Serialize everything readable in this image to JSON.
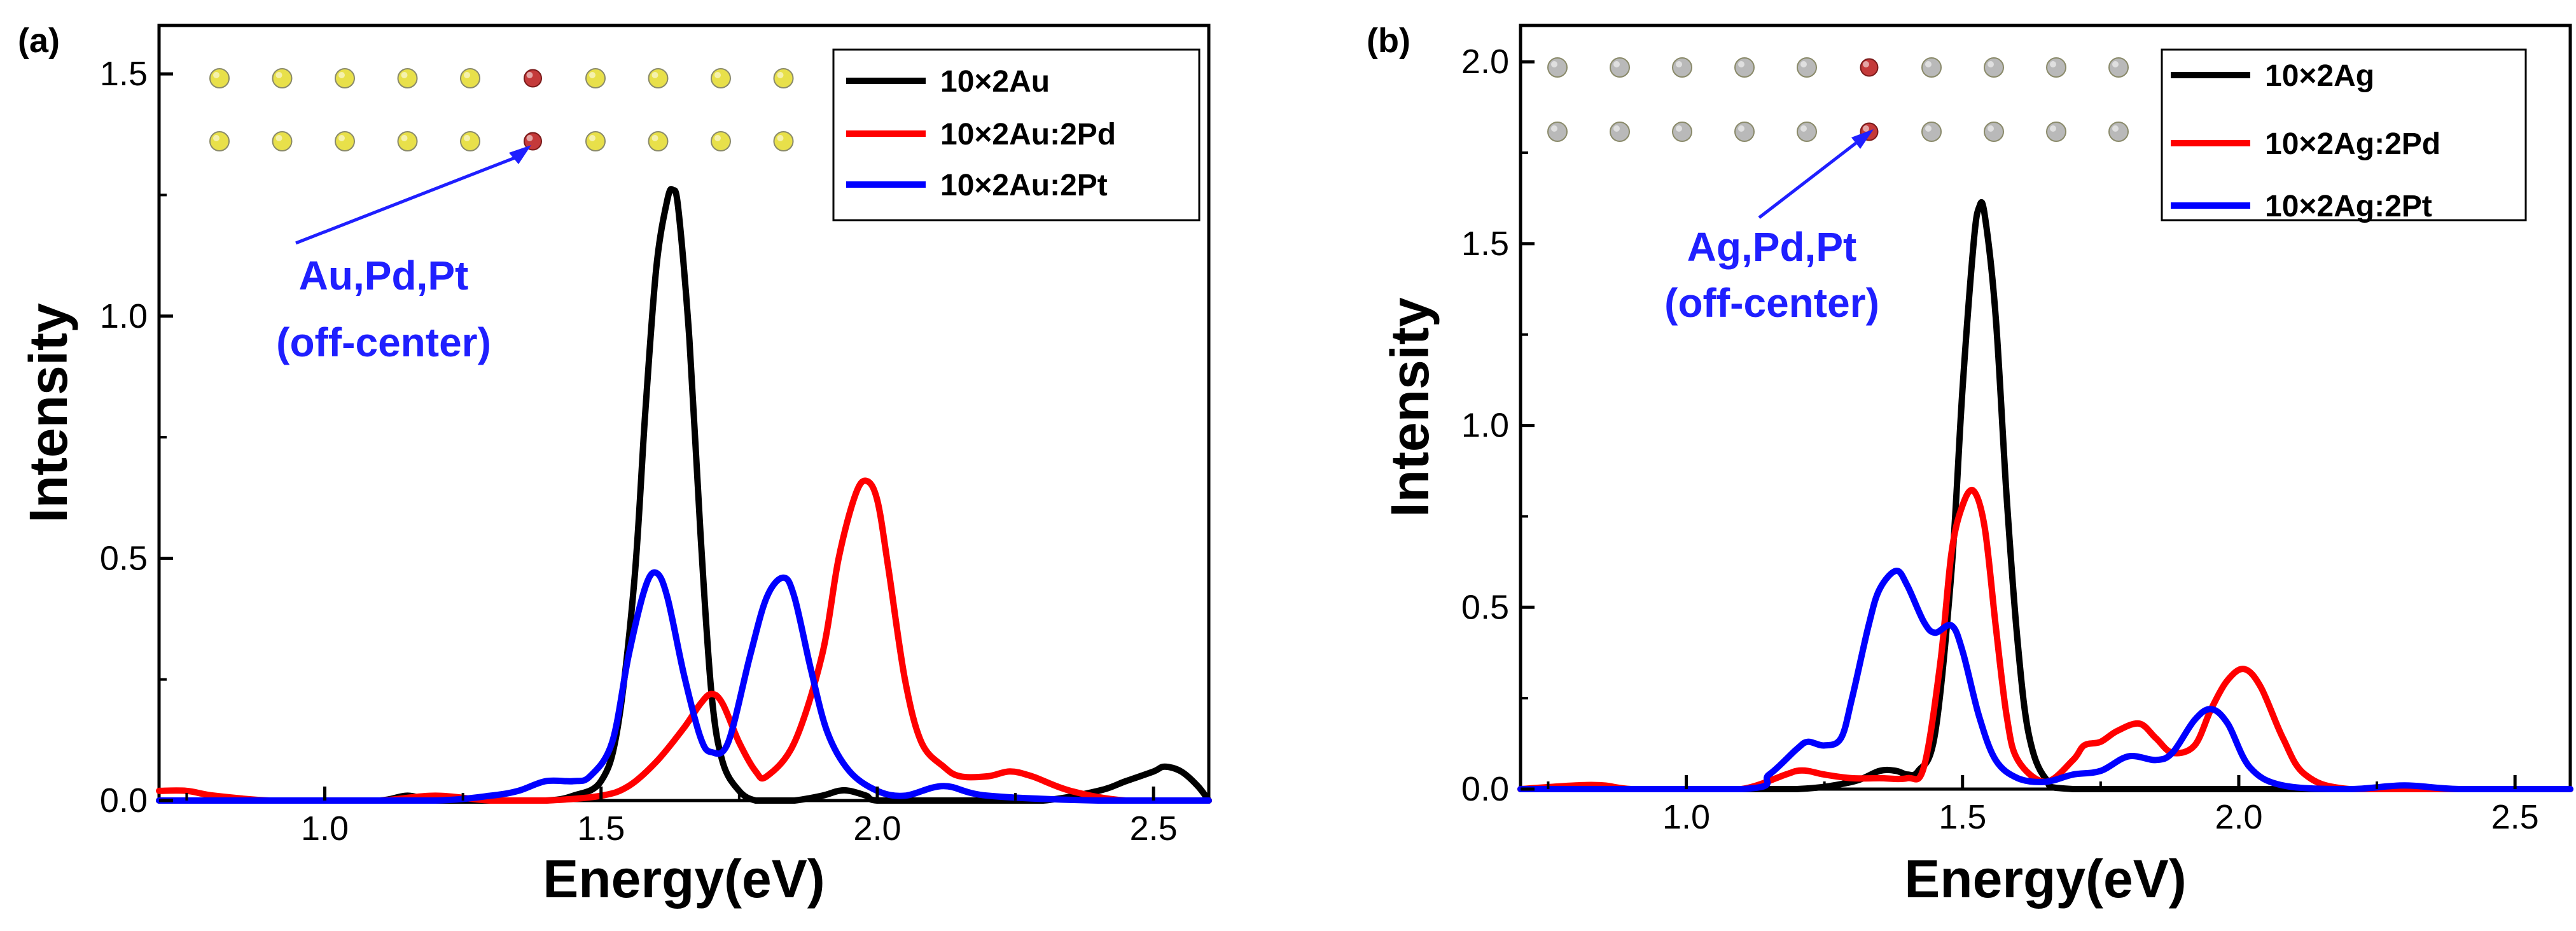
{
  "chart_data": [
    {
      "id": "a",
      "type": "line",
      "panel_label": "(a)",
      "xlabel": "Energy(eV)",
      "ylabel": "Intensity",
      "xlim": [
        0.7,
        2.6
      ],
      "ylim": [
        0,
        1.6
      ],
      "xticks": [
        1.0,
        1.5,
        2.0,
        2.5
      ],
      "xtick_labels": [
        "1.0",
        "1.5",
        "2.0",
        "2.5"
      ],
      "yticks": [
        0.0,
        0.5,
        1.0,
        1.5
      ],
      "ytick_labels": [
        "0.0",
        "0.5",
        "1.0",
        "1.5"
      ],
      "legend_position": "top-right",
      "annotation": {
        "line1": "Au,Pd,Pt",
        "line2": "(off-center)",
        "color": "#1f1fff"
      },
      "atom_inset": {
        "rows": 2,
        "columns": 10,
        "host_color": "#e8e04a",
        "dopant_color": "#c43a3a",
        "dopant_column": 6
      },
      "series": [
        {
          "name": "10×2Au",
          "color": "#000000",
          "x": [
            0.7,
            1.0,
            1.1,
            1.15,
            1.2,
            1.3,
            1.4,
            1.45,
            1.5,
            1.53,
            1.56,
            1.58,
            1.6,
            1.62,
            1.63,
            1.64,
            1.66,
            1.68,
            1.7,
            1.72,
            1.75,
            1.78,
            1.82,
            1.85,
            1.9,
            1.93,
            1.95,
            1.98,
            2.0,
            2.1,
            2.2,
            2.3,
            2.4,
            2.45,
            2.5,
            2.52,
            2.55,
            2.58,
            2.6
          ],
          "y": [
            0.0,
            0.0,
            0.0,
            0.01,
            0.0,
            0.0,
            0.0,
            0.01,
            0.04,
            0.15,
            0.45,
            0.8,
            1.1,
            1.24,
            1.26,
            1.22,
            0.95,
            0.55,
            0.22,
            0.08,
            0.02,
            0.0,
            0.0,
            0.0,
            0.01,
            0.02,
            0.02,
            0.01,
            0.0,
            0.0,
            0.0,
            0.0,
            0.02,
            0.04,
            0.06,
            0.07,
            0.06,
            0.03,
            0.0
          ]
        },
        {
          "name": "10×2Au:2Pd",
          "color": "#ff0000",
          "x": [
            0.7,
            0.75,
            0.8,
            0.9,
            1.0,
            1.1,
            1.2,
            1.3,
            1.4,
            1.5,
            1.55,
            1.6,
            1.65,
            1.68,
            1.7,
            1.72,
            1.75,
            1.78,
            1.8,
            1.85,
            1.9,
            1.93,
            1.96,
            1.98,
            2.0,
            2.02,
            2.05,
            2.08,
            2.12,
            2.15,
            2.2,
            2.24,
            2.28,
            2.35,
            2.45,
            2.6
          ],
          "y": [
            0.02,
            0.02,
            0.01,
            0.0,
            0.0,
            0.0,
            0.01,
            0.0,
            0.0,
            0.01,
            0.03,
            0.08,
            0.15,
            0.2,
            0.22,
            0.2,
            0.12,
            0.06,
            0.05,
            0.12,
            0.3,
            0.5,
            0.63,
            0.66,
            0.62,
            0.48,
            0.25,
            0.12,
            0.07,
            0.05,
            0.05,
            0.06,
            0.05,
            0.02,
            0.0,
            0.0
          ]
        },
        {
          "name": "10×2Au:2Pt",
          "color": "#0000ff",
          "x": [
            0.7,
            1.0,
            1.2,
            1.3,
            1.35,
            1.4,
            1.45,
            1.48,
            1.52,
            1.55,
            1.58,
            1.6,
            1.62,
            1.65,
            1.68,
            1.7,
            1.73,
            1.77,
            1.8,
            1.83,
            1.85,
            1.88,
            1.91,
            1.95,
            2.0,
            2.05,
            2.12,
            2.2,
            2.4,
            2.6
          ],
          "y": [
            0.0,
            0.0,
            0.0,
            0.01,
            0.02,
            0.04,
            0.04,
            0.05,
            0.12,
            0.3,
            0.44,
            0.47,
            0.42,
            0.26,
            0.13,
            0.1,
            0.12,
            0.3,
            0.42,
            0.46,
            0.42,
            0.27,
            0.14,
            0.06,
            0.02,
            0.01,
            0.03,
            0.01,
            0.0,
            0.0
          ]
        }
      ]
    },
    {
      "id": "b",
      "type": "line",
      "panel_label": "(b)",
      "xlabel": "Energy(eV)",
      "ylabel": "Intensity",
      "xlim": [
        0.7,
        2.6
      ],
      "ylim": [
        0,
        2.1
      ],
      "xticks": [
        1.0,
        1.5,
        2.0,
        2.5
      ],
      "xtick_labels": [
        "1.0",
        "1.5",
        "2.0",
        "2.5"
      ],
      "yticks": [
        0.0,
        0.5,
        1.0,
        1.5,
        2.0
      ],
      "ytick_labels": [
        "0.0",
        "0.5",
        "1.0",
        "1.5",
        "2.0"
      ],
      "legend_position": "top-right",
      "annotation": {
        "line1": "Ag,Pd,Pt",
        "line2": "(off-center)",
        "color": "#1f1fff"
      },
      "atom_inset": {
        "rows": 2,
        "columns": 10,
        "host_color": "#b9b9b9",
        "dopant_color": "#c43a3a",
        "dopant_column": 6
      },
      "series": [
        {
          "name": "10×2Ag",
          "color": "#000000",
          "x": [
            0.7,
            1.0,
            1.2,
            1.3,
            1.35,
            1.38,
            1.4,
            1.42,
            1.45,
            1.48,
            1.5,
            1.52,
            1.53,
            1.54,
            1.56,
            1.58,
            1.6,
            1.62,
            1.65,
            1.7,
            2.0,
            2.3,
            2.6
          ],
          "y": [
            0.0,
            0.0,
            0.0,
            0.02,
            0.05,
            0.05,
            0.04,
            0.05,
            0.15,
            0.6,
            1.1,
            1.5,
            1.6,
            1.58,
            1.3,
            0.8,
            0.4,
            0.15,
            0.03,
            0.0,
            0.0,
            0.0,
            0.0
          ]
        },
        {
          "name": "10×2Ag:2Pd",
          "color": "#ff0000",
          "x": [
            0.7,
            0.8,
            0.85,
            0.9,
            1.0,
            1.1,
            1.18,
            1.2,
            1.22,
            1.25,
            1.3,
            1.35,
            1.4,
            1.43,
            1.46,
            1.48,
            1.5,
            1.52,
            1.54,
            1.56,
            1.58,
            1.6,
            1.65,
            1.7,
            1.72,
            1.75,
            1.78,
            1.82,
            1.85,
            1.88,
            1.92,
            1.95,
            1.98,
            2.01,
            2.04,
            2.08,
            2.12,
            2.2,
            2.4,
            2.6
          ],
          "y": [
            0.0,
            0.01,
            0.01,
            0.0,
            0.0,
            0.0,
            0.04,
            0.05,
            0.05,
            0.04,
            0.03,
            0.03,
            0.03,
            0.06,
            0.35,
            0.65,
            0.78,
            0.82,
            0.72,
            0.45,
            0.2,
            0.08,
            0.02,
            0.08,
            0.12,
            0.13,
            0.16,
            0.18,
            0.14,
            0.1,
            0.12,
            0.22,
            0.3,
            0.33,
            0.28,
            0.14,
            0.04,
            0.0,
            0.0,
            0.0
          ]
        },
        {
          "name": "10×2Ag:2Pt",
          "color": "#0000ff",
          "x": [
            0.7,
            1.1,
            1.15,
            1.2,
            1.22,
            1.25,
            1.28,
            1.3,
            1.33,
            1.35,
            1.38,
            1.4,
            1.43,
            1.45,
            1.48,
            1.5,
            1.53,
            1.56,
            1.6,
            1.65,
            1.7,
            1.75,
            1.8,
            1.85,
            1.88,
            1.92,
            1.95,
            1.98,
            2.02,
            2.08,
            2.2,
            2.3,
            2.4,
            2.6
          ],
          "y": [
            0.0,
            0.0,
            0.04,
            0.11,
            0.13,
            0.12,
            0.14,
            0.25,
            0.45,
            0.55,
            0.6,
            0.56,
            0.46,
            0.43,
            0.45,
            0.38,
            0.2,
            0.08,
            0.03,
            0.02,
            0.04,
            0.05,
            0.09,
            0.08,
            0.1,
            0.19,
            0.22,
            0.18,
            0.06,
            0.01,
            0.0,
            0.01,
            0.0,
            0.0
          ]
        }
      ]
    }
  ]
}
